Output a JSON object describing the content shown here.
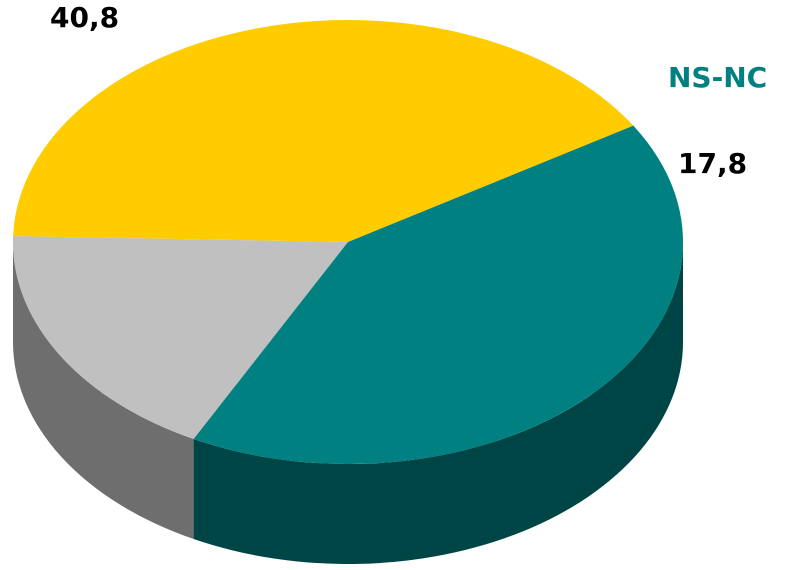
{
  "chart_data": {
    "type": "pie",
    "title": "",
    "slices": [
      {
        "name": "",
        "value": 40.8,
        "value_label": "40,8",
        "color": "#FFCC00",
        "side_color": "#7A6200"
      },
      {
        "name": "NS-NC",
        "value": 17.8,
        "value_label": "17,8",
        "color": "#C0C0C0",
        "side_color": "#6E6E6E",
        "name_color": "#008080"
      },
      {
        "name": "",
        "value": 41.4,
        "value_label": "",
        "color": "#008080",
        "side_color": "#004545"
      }
    ],
    "three_d": true,
    "legend": "none"
  }
}
